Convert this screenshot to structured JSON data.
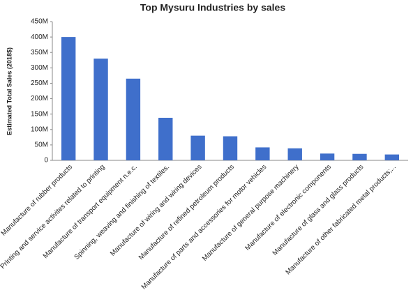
{
  "chart_data": {
    "type": "bar",
    "title": "Top Mysuru Industries by sales",
    "y_label": "Estimated Total Sales (2018$)",
    "categories": [
      "Manufacture of rubber products",
      "Printing and service activites related to printing",
      "Manufacture of transport equipment n.e.c.",
      "Spinning, weaving and finishing of textiles.",
      "Manufacture of wiring and wiring devices",
      "Manufacture of refined petroleum products",
      "Manufacture of parts and accessories for motor vehicles",
      "Manufacture of general purpose machinery",
      "Manufacture of electronic components",
      "Manufacture of glass and glass products",
      "Manufacture of other fabricated metal products;..."
    ],
    "values": [
      400000000,
      330000000,
      265000000,
      138000000,
      80000000,
      78000000,
      42000000,
      39000000,
      22000000,
      21000000,
      19000000
    ],
    "color": "#3f6fcb",
    "ylim": [
      0,
      450000000
    ],
    "yticks": [
      {
        "value": 0,
        "label": "0"
      },
      {
        "value": 50000000,
        "label": "50M"
      },
      {
        "value": 100000000,
        "label": "100M"
      },
      {
        "value": 150000000,
        "label": "150M"
      },
      {
        "value": 200000000,
        "label": "200M"
      },
      {
        "value": 250000000,
        "label": "250M"
      },
      {
        "value": 300000000,
        "label": "300M"
      },
      {
        "value": 350000000,
        "label": "350M"
      },
      {
        "value": 400000000,
        "label": "400M"
      },
      {
        "value": 450000000,
        "label": "450M"
      }
    ],
    "grid": false
  }
}
